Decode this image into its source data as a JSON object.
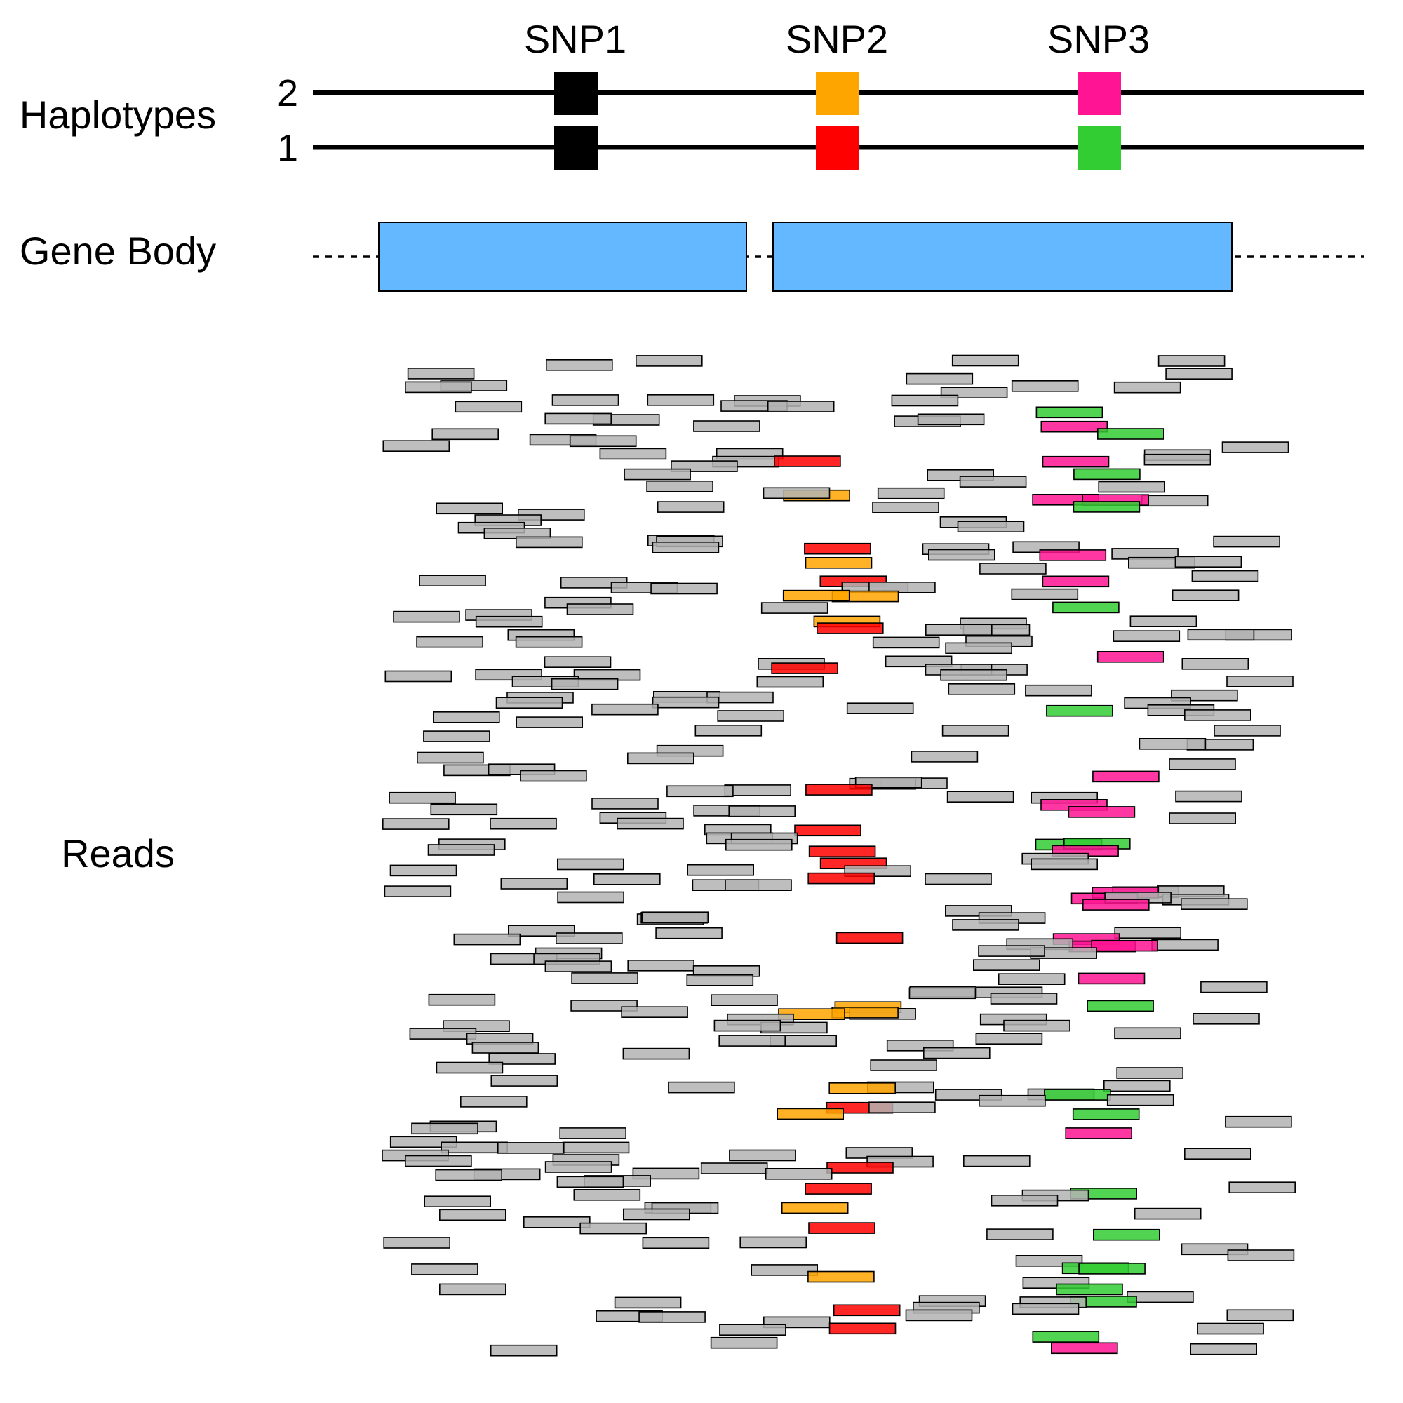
{
  "labels": {
    "haplotypes": "Haplotypes",
    "gene_body": "Gene Body",
    "reads": "Reads"
  },
  "haplotypes": [
    {
      "label": "2"
    },
    {
      "label": "1"
    }
  ],
  "snps": [
    {
      "name": "SNP1",
      "allele_colors": {
        "hap1": "#000000",
        "hap2": "#000000"
      }
    },
    {
      "name": "SNP2",
      "allele_colors": {
        "hap1": "#ff0000",
        "hap2": "#ffa500"
      }
    },
    {
      "name": "SNP3",
      "allele_colors": {
        "hap1": "#32cd32",
        "hap2": "#ff1493"
      }
    }
  ],
  "colors": {
    "gene_body": "#63b8ff",
    "read_default": "#b3b3b3",
    "hap1_snp2": "#ff0000",
    "hap2_snp2": "#ffa500",
    "hap1_snp3": "#32cd32",
    "hap2_snp3": "#ff1493",
    "line": "#000000"
  },
  "gene_body": {
    "exon_count": 2,
    "style": "two exons joined by dotted intron line"
  },
  "reads_pattern": {
    "description": "many short gray reads tiled over the gene body; reads covering SNP2 or SNP3 are colored by haplotype allele"
  }
}
